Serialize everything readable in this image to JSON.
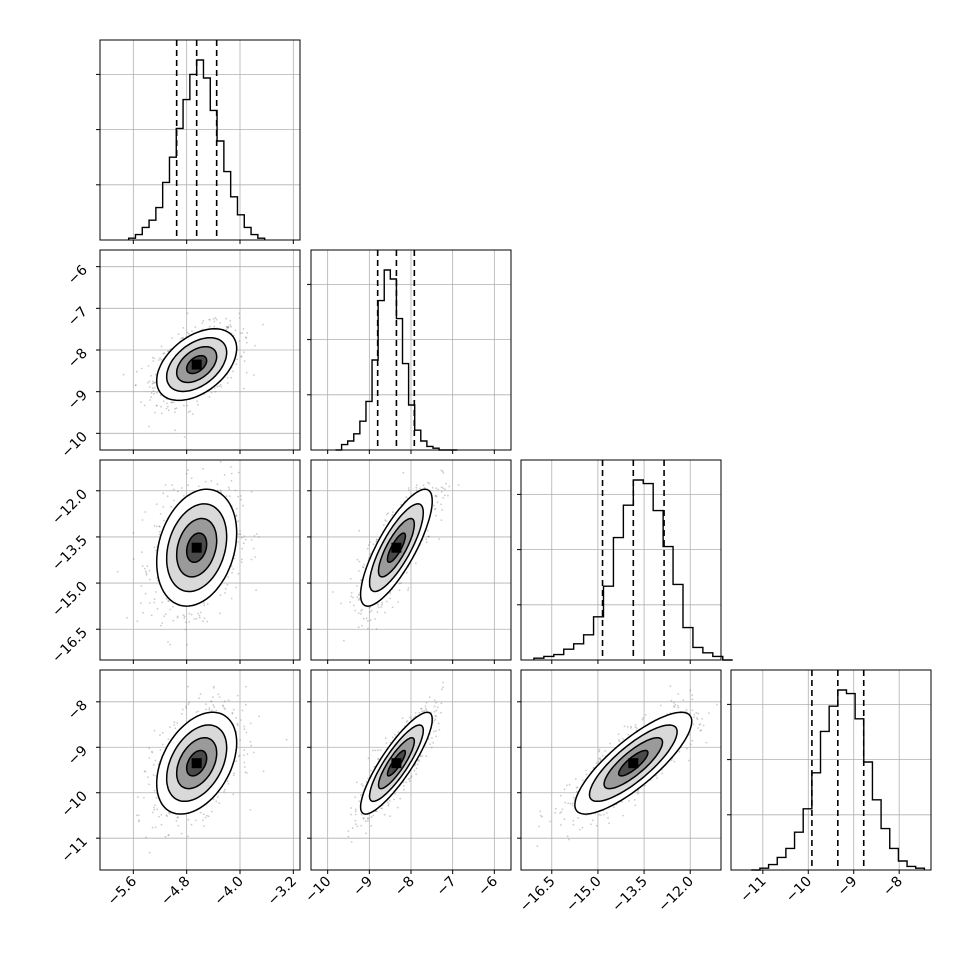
{
  "chart_data": {
    "type": "corner",
    "title": "",
    "grid": true,
    "legend": "none",
    "parameters": [
      {
        "range": [
          -6.1,
          -3.1
        ],
        "ticks": [
          -5.6,
          -4.8,
          -4.0,
          -3.2
        ],
        "tick_labels": [
          "−5.6",
          "−4.8",
          "−4.0",
          "−3.2"
        ],
        "quantiles": [
          -4.95,
          -4.65,
          -4.35
        ],
        "mean": -4.65,
        "sd": 0.3
      },
      {
        "range": [
          -10.4,
          -5.6
        ],
        "ticks": [
          -10,
          -9,
          -8,
          -7,
          -6
        ],
        "tick_labels": [
          "−10",
          "−9",
          "−8",
          "−7",
          "−6"
        ],
        "quantiles": [
          -8.8,
          -8.35,
          -7.92
        ],
        "mean": -8.35,
        "sd": 0.43
      },
      {
        "range": [
          -17.5,
          -11.0
        ],
        "ticks": [
          -16.5,
          -15.0,
          -13.5,
          -12.0
        ],
        "tick_labels": [
          "−16.5",
          "−15.0",
          "−13.5",
          "−12.0"
        ],
        "quantiles": [
          -14.85,
          -13.85,
          -12.85
        ],
        "mean": -13.85,
        "sd": 0.95
      },
      {
        "range": [
          -11.7,
          -7.3
        ],
        "ticks": [
          -11,
          -10,
          -9,
          -8
        ],
        "tick_labels": [
          "−11",
          "−10",
          "−9",
          "−8"
        ],
        "quantiles": [
          -9.92,
          -9.35,
          -8.78
        ],
        "mean": -9.35,
        "sd": 0.56
      }
    ],
    "correlations": [
      {
        "pair": [
          0,
          1
        ],
        "r": 0.45
      },
      {
        "pair": [
          0,
          2
        ],
        "r": 0.25
      },
      {
        "pair": [
          0,
          3
        ],
        "r": 0.4
      },
      {
        "pair": [
          1,
          2
        ],
        "r": 0.8
      },
      {
        "pair": [
          1,
          3
        ],
        "r": 0.86
      },
      {
        "pair": [
          2,
          3
        ],
        "r": 0.82
      }
    ],
    "histograms": [
      {
        "param": 0,
        "bins": 20,
        "density": [
          0.01,
          0.03,
          0.07,
          0.11,
          0.18,
          0.32,
          0.46,
          0.62,
          0.78,
          0.92,
          1.0,
          0.9,
          0.72,
          0.55,
          0.38,
          0.24,
          0.14,
          0.07,
          0.03,
          0.01
        ]
      },
      {
        "param": 1,
        "bins": 20,
        "density": [
          0.0,
          0.03,
          0.05,
          0.09,
          0.16,
          0.27,
          0.5,
          0.83,
          1.0,
          0.95,
          0.73,
          0.48,
          0.25,
          0.11,
          0.05,
          0.02,
          0.01,
          0.0,
          0.0,
          0.0
        ]
      },
      {
        "param": 2,
        "bins": 20,
        "density": [
          0.01,
          0.02,
          0.03,
          0.06,
          0.09,
          0.14,
          0.24,
          0.41,
          0.68,
          0.86,
          1.0,
          0.98,
          0.83,
          0.63,
          0.42,
          0.18,
          0.07,
          0.04,
          0.02,
          0.0
        ]
      },
      {
        "param": 3,
        "bins": 20,
        "density": [
          0.0,
          0.01,
          0.03,
          0.07,
          0.12,
          0.21,
          0.34,
          0.54,
          0.77,
          0.91,
          1.0,
          0.98,
          0.84,
          0.6,
          0.39,
          0.23,
          0.12,
          0.05,
          0.02,
          0.01
        ]
      }
    ],
    "contour_levels": [
      "0.5 sigma",
      "1.0 sigma",
      "1.5 sigma",
      "2.0 sigma"
    ]
  }
}
